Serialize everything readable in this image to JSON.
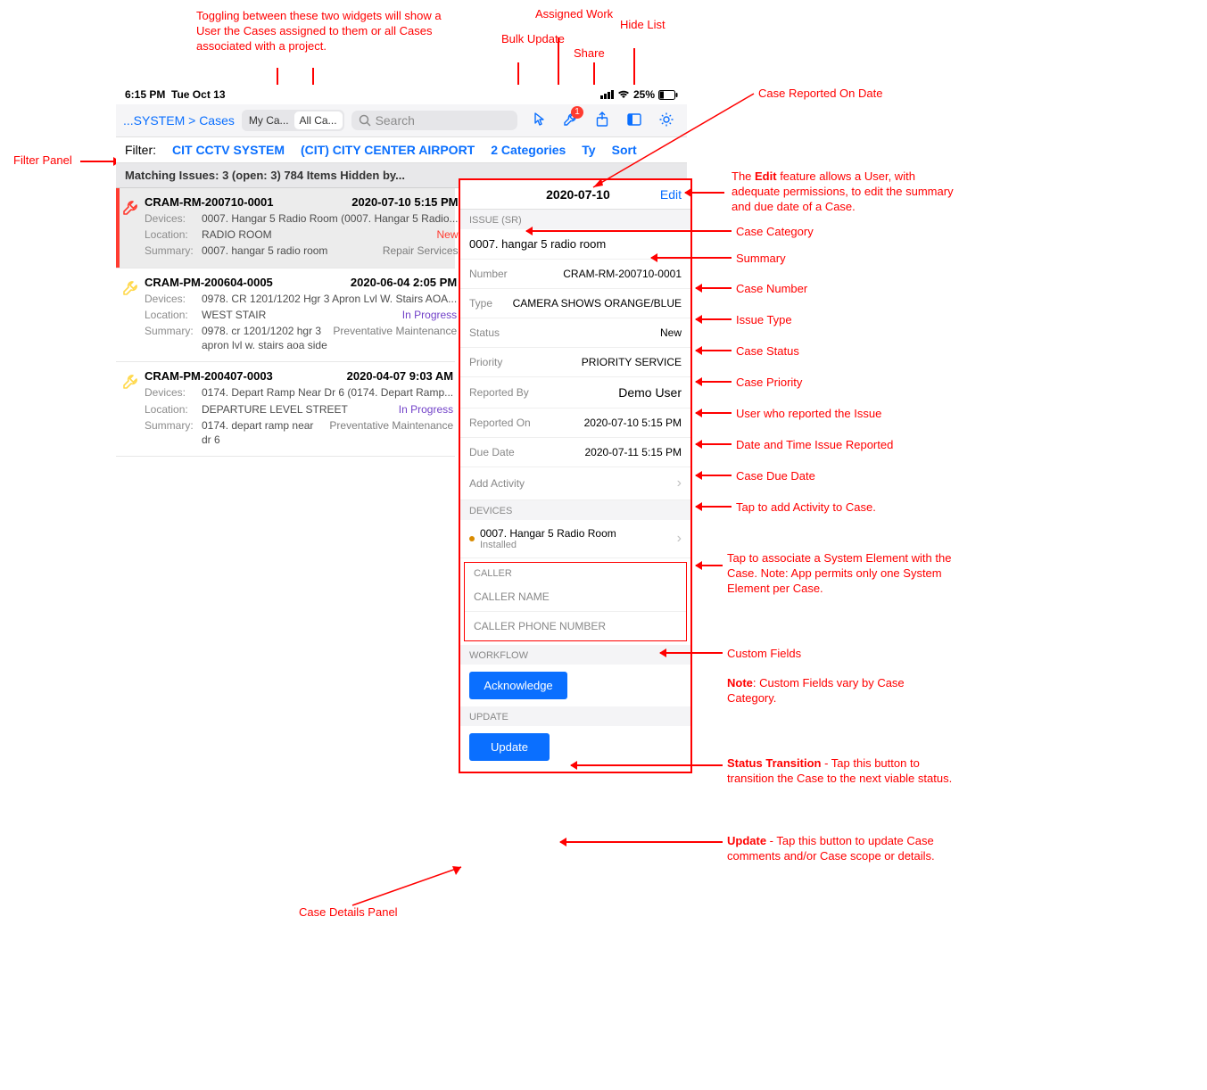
{
  "colors": {
    "accent": "#0a6fff",
    "danger": "#ff3b30",
    "purple": "#7141c8",
    "annotation": "#ff0000",
    "muted": "#8c8c8c",
    "bg_gray": "#f5f5f7"
  },
  "statusbar": {
    "time": "6:15 PM",
    "date": "Tue Oct 13",
    "battery": "25%"
  },
  "toolbar": {
    "breadcrumb": "...SYSTEM > Cases",
    "seg_my": "My Ca...",
    "seg_all": "All Ca...",
    "search_placeholder": "Search",
    "badge": "1"
  },
  "filterbar": {
    "label": "Filter:",
    "f1": "CIT CCTV SYSTEM",
    "f2": "(CIT) CITY CENTER AIRPORT",
    "f3": "2 Categories",
    "type": "Ty",
    "sort": "Sort"
  },
  "matching": "Matching Issues: 3 (open: 3) 784 Items Hidden by...",
  "cases": [
    {
      "id": "CRAM-RM-200710-0001",
      "ts": "2020-07-10 5:15 PM",
      "devices": "0007. Hangar 5 Radio Room (0007. Hangar 5 Radio...",
      "location": "RADIO ROOM",
      "status": "New",
      "status_class": "status-new",
      "summary": "0007. hangar 5 radio room",
      "tag": "Repair Services",
      "wrench": "#ff3b30",
      "selected": true
    },
    {
      "id": "CRAM-PM-200604-0005",
      "ts": "2020-06-04 2:05 PM",
      "devices": "0978. CR 1201/1202 Hgr 3 Apron Lvl W. Stairs AOA...",
      "location": "WEST STAIR",
      "status": "In Progress",
      "status_class": "status-inprogress",
      "summary": "0978. cr 1201/1202 hgr 3 apron lvl w. stairs aoa side",
      "tag": "Preventative Maintenance",
      "wrench": "#ffd84a",
      "selected": false
    },
    {
      "id": "CRAM-PM-200407-0003",
      "ts": "2020-04-07 9:03 AM",
      "devices": "0174. Depart Ramp Near Dr 6 (0174. Depart Ramp...",
      "location": "DEPARTURE LEVEL STREET",
      "status": "In Progress",
      "status_class": "status-inprogress",
      "summary": "0174. depart ramp near dr 6",
      "tag": "Preventative Maintenance",
      "wrench": "#ffd84a",
      "selected": false
    }
  ],
  "detail": {
    "reported_date": "2020-07-10",
    "edit": "Edit",
    "section_issue": "ISSUE (SR)",
    "summary": "0007. hangar 5 radio room",
    "number_k": "Number",
    "number_v": "CRAM-RM-200710-0001",
    "type_k": "Type",
    "type_v": "CAMERA SHOWS ORANGE/BLUE",
    "status_k": "Status",
    "status_v": "New",
    "priority_k": "Priority",
    "priority_v": "PRIORITY SERVICE",
    "reportedby_k": "Reported By",
    "reportedby_v": "Demo User",
    "reportedon_k": "Reported On",
    "reportedon_v": "2020-07-10 5:15 PM",
    "duedate_k": "Due Date",
    "duedate_v": "2020-07-11 5:15 PM",
    "add_activity": "Add Activity",
    "section_devices": "DEVICES",
    "device_name": "0007. Hangar 5 Radio Room",
    "device_status": "Installed",
    "section_caller": "CALLER",
    "caller_name": "CALLER NAME",
    "caller_phone": "CALLER PHONE NUMBER",
    "section_workflow": "WORKFLOW",
    "btn_ack": "Acknowledge",
    "section_update": "UPDATE",
    "btn_update": "Update"
  },
  "annotations": {
    "toggle": "Toggling between these two widgets will show a User the Cases assigned to them or all Cases associated with a project.",
    "bulk": "Bulk Update",
    "assigned": "Assigned Work",
    "share": "Share",
    "hide": "Hide List",
    "filter": "Filter Panel",
    "reported_date": "Case Reported On Date",
    "edit": "The Edit feature allows a User, with adequate permissions, to edit the summary and due date of a Case.",
    "edit_b": "Edit",
    "category": "Case Category",
    "summary": "Summary",
    "number": "Case Number",
    "type": "Issue Type",
    "status": "Case Status",
    "priority": "Case Priority",
    "reportedby": "User who reported the Issue",
    "reportedon": "Date and Time Issue Reported",
    "duedate": "Case Due Date",
    "activity": "Tap to add Activity to Case.",
    "device": "Tap to associate a System Element with the Case. Note: App permits only one System Element per Case.",
    "custom": "Custom Fields",
    "custom_note_b": "Note",
    "custom_note": ": Custom Fields vary by Case Category.",
    "transition_b": "Status Transition",
    "transition": " - Tap this button to transition the Case to the next viable status.",
    "update_b": "Update",
    "update": " - Tap this button to update Case comments and/or Case scope or details.",
    "details_panel": "Case Details Panel"
  }
}
